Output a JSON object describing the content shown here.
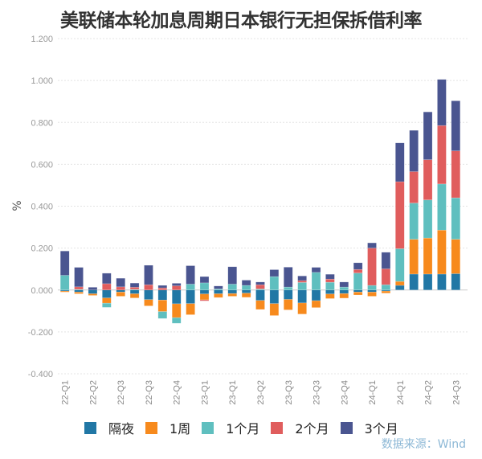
{
  "chart_data": {
    "type": "bar",
    "stacked": true,
    "title": "美联储本轮加息周期日本银行无担保拆借利率",
    "ylabel": "%",
    "xlabel": "",
    "ylim": [
      -0.4,
      1.2
    ],
    "yticks": [
      "1.200",
      "1.000",
      "0.800",
      "0.600",
      "0.400",
      "0.200",
      "0.000",
      "-0.200",
      "-0.400"
    ],
    "grid": true,
    "legend_position": "bottom",
    "categories": [
      "22-Q1",
      "",
      "22-Q2",
      "",
      "22-Q3",
      "",
      "22-Q3",
      "",
      "22-Q4",
      "",
      "23-Q1",
      "",
      "23-Q1",
      "",
      "23-Q2",
      "",
      "23-Q3",
      "",
      "23-Q3",
      "",
      "23-Q4",
      "",
      "24-Q1",
      "",
      "24-Q1",
      "",
      "24-Q2",
      "",
      "24-Q3"
    ],
    "series": [
      {
        "name": "隔夜",
        "color": "#2177a5",
        "values": [
          -0.005,
          -0.01,
          -0.018,
          -0.038,
          -0.01,
          -0.018,
          -0.046,
          -0.048,
          -0.066,
          -0.065,
          -0.019,
          -0.018,
          -0.017,
          -0.015,
          -0.05,
          -0.065,
          -0.045,
          -0.062,
          -0.051,
          -0.019,
          -0.017,
          -0.01,
          -0.01,
          -0.005,
          0.022,
          0.076,
          0.076,
          0.076,
          0.078
        ]
      },
      {
        "name": "1周",
        "color": "#f78a1d",
        "values": [
          -0.005,
          -0.008,
          -0.008,
          -0.025,
          -0.02,
          -0.02,
          -0.03,
          -0.055,
          -0.066,
          -0.053,
          -0.028,
          -0.018,
          -0.013,
          -0.02,
          -0.043,
          -0.057,
          -0.05,
          -0.053,
          -0.033,
          -0.022,
          -0.022,
          -0.014,
          -0.02,
          -0.01,
          0.019,
          0.166,
          0.172,
          0.21,
          0.164
        ]
      },
      {
        "name": "1个月",
        "color": "#5fbfbf",
        "values": [
          0.07,
          0.003,
          0,
          -0.02,
          0,
          0.003,
          0,
          -0.033,
          -0.027,
          0.028,
          0.034,
          0.005,
          0.028,
          0.022,
          0.005,
          0.064,
          0.014,
          0.036,
          0.084,
          0.037,
          0.014,
          0.081,
          0.022,
          0.025,
          0.156,
          0.173,
          0.182,
          0.22,
          0.198
        ]
      },
      {
        "name": "2个月",
        "color": "#e05d5d",
        "values": [
          0,
          0.012,
          0,
          0.03,
          0.015,
          0.01,
          0.025,
          0.01,
          0.02,
          0,
          -0.005,
          0,
          0,
          0,
          0.02,
          0,
          0,
          0.009,
          0,
          0.015,
          0,
          0.017,
          0.178,
          0.076,
          0.32,
          0.15,
          0.192,
          0.279,
          0.224
        ]
      },
      {
        "name": "3个月",
        "color": "#4a5590",
        "values": [
          0.116,
          0.093,
          0.013,
          0.05,
          0.041,
          0.02,
          0.093,
          0.012,
          0.012,
          0.088,
          0.03,
          0.014,
          0.083,
          0.025,
          0.013,
          0.033,
          0.095,
          0.022,
          0.024,
          0.023,
          0.024,
          0.032,
          0.025,
          0.079,
          0.185,
          0.197,
          0.228,
          0.22,
          0.239
        ]
      }
    ]
  },
  "source": "数据来源：Wind"
}
